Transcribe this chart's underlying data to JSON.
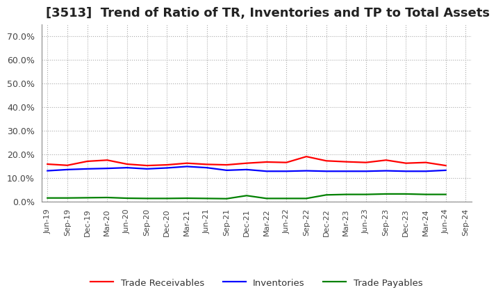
{
  "title": "[3513]  Trend of Ratio of TR, Inventories and TP to Total Assets",
  "x_labels": [
    "Jun-19",
    "Sep-19",
    "Dec-19",
    "Mar-20",
    "Jun-20",
    "Sep-20",
    "Dec-20",
    "Mar-21",
    "Jun-21",
    "Sep-21",
    "Dec-21",
    "Mar-22",
    "Jun-22",
    "Sep-22",
    "Dec-22",
    "Mar-23",
    "Jun-23",
    "Sep-23",
    "Dec-23",
    "Mar-24",
    "Jun-24",
    "Sep-24"
  ],
  "trade_receivables": [
    0.158,
    0.153,
    0.17,
    0.175,
    0.158,
    0.152,
    0.155,
    0.162,
    0.157,
    0.155,
    0.162,
    0.167,
    0.165,
    0.19,
    0.172,
    0.168,
    0.165,
    0.175,
    0.162,
    0.165,
    0.152,
    null
  ],
  "inventories": [
    0.13,
    0.135,
    0.138,
    0.14,
    0.143,
    0.138,
    0.142,
    0.148,
    0.143,
    0.132,
    0.135,
    0.128,
    0.128,
    0.13,
    0.128,
    0.128,
    0.128,
    0.13,
    0.128,
    0.128,
    0.132,
    null
  ],
  "trade_payables": [
    0.015,
    0.015,
    0.016,
    0.017,
    0.014,
    0.013,
    0.013,
    0.014,
    0.013,
    0.012,
    0.025,
    0.013,
    0.013,
    0.013,
    0.028,
    0.03,
    0.03,
    0.032,
    0.032,
    0.03,
    0.03,
    null
  ],
  "tr_color": "#ff0000",
  "inv_color": "#0000ff",
  "tp_color": "#008000",
  "ylim": [
    0.0,
    0.75
  ],
  "yticks": [
    0.0,
    0.1,
    0.2,
    0.3,
    0.4,
    0.5,
    0.6,
    0.7
  ],
  "background_color": "#ffffff",
  "plot_bg_color": "#ffffff",
  "grid_color": "#aaaaaa",
  "legend_labels": [
    "Trade Receivables",
    "Inventories",
    "Trade Payables"
  ],
  "title_fontsize": 13,
  "tick_fontsize": 8,
  "ytick_fontsize": 9
}
